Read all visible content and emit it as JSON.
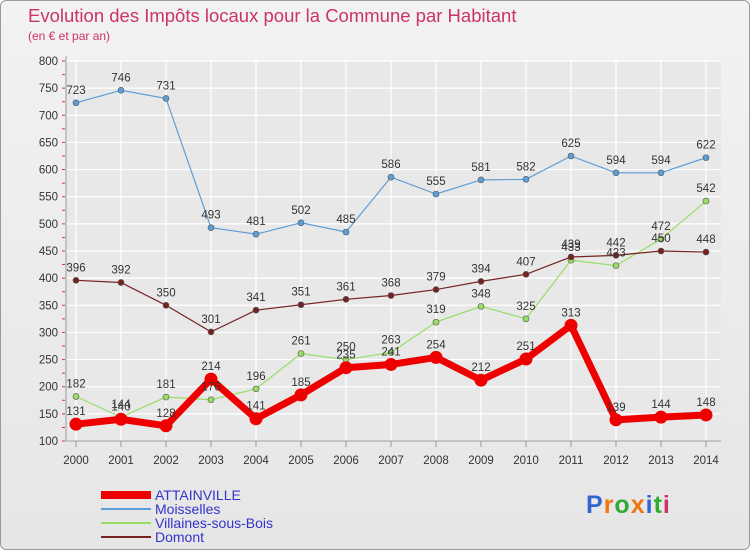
{
  "title": "Evolution des Impôts locaux pour la Commune par Habitant",
  "subtitle": "(en € et par an)",
  "logo_text": "Proxiti",
  "colors": {
    "title": "#cc3366",
    "grid": "#ffffff",
    "attainville": "#ee0000",
    "moisselles": "#5e9ed6",
    "villaines": "#99dd66",
    "domont": "#772222",
    "legend_text": "#3333cc"
  },
  "chart_data": {
    "type": "line",
    "title": "Evolution des Impôts locaux pour la Commune par Habitant",
    "subtitle": "(en € et par an)",
    "xlabel": "",
    "ylabel": "",
    "ylim": [
      100,
      800
    ],
    "yticks": [
      100,
      150,
      200,
      250,
      300,
      350,
      400,
      450,
      500,
      550,
      600,
      650,
      700,
      750,
      800
    ],
    "categories": [
      "2000",
      "2001",
      "2002",
      "2003",
      "2004",
      "2005",
      "2006",
      "2007",
      "2008",
      "2009",
      "2010",
      "2011",
      "2012",
      "2013",
      "2014"
    ],
    "grid": true,
    "legend_position": "bottom-left",
    "series": [
      {
        "name": "ATTAINVILLE",
        "key": "attainville",
        "values": [
          131,
          140,
          128,
          214,
          141,
          185,
          235,
          241,
          254,
          212,
          251,
          313,
          139,
          144,
          148
        ]
      },
      {
        "name": "Moisselles",
        "key": "moisselles",
        "values": [
          723,
          746,
          731,
          493,
          481,
          502,
          485,
          586,
          555,
          581,
          582,
          625,
          594,
          594,
          622
        ]
      },
      {
        "name": "Villaines-sous-Bois",
        "key": "villaines",
        "values": [
          182,
          144,
          181,
          176,
          196,
          261,
          250,
          263,
          319,
          348,
          325,
          433,
          423,
          472,
          542
        ]
      },
      {
        "name": "Domont",
        "key": "domont",
        "values": [
          396,
          392,
          350,
          301,
          341,
          351,
          361,
          368,
          379,
          394,
          407,
          439,
          442,
          450,
          448
        ]
      }
    ],
    "point_labels": {
      "attainville": [
        "131",
        "140",
        "128",
        "214",
        "141",
        "185",
        "235",
        "241",
        "254",
        "212",
        "251",
        "313",
        "139",
        "144",
        "148"
      ],
      "moisselles": [
        "723",
        "746",
        "731",
        "493",
        "481",
        "502",
        "485",
        "586",
        "555",
        "581",
        "582",
        "625",
        "594",
        "594",
        "622"
      ],
      "villaines": [
        "182",
        "144",
        "181",
        "176",
        "196",
        "261",
        "250",
        "263",
        "319",
        "348",
        "325",
        "433",
        "423",
        "472",
        "542"
      ],
      "domont": [
        "396",
        "392",
        "350",
        "301",
        "341",
        "351",
        "361",
        "368",
        "379",
        "394",
        "407",
        "439",
        "442",
        "450",
        "448"
      ]
    }
  }
}
